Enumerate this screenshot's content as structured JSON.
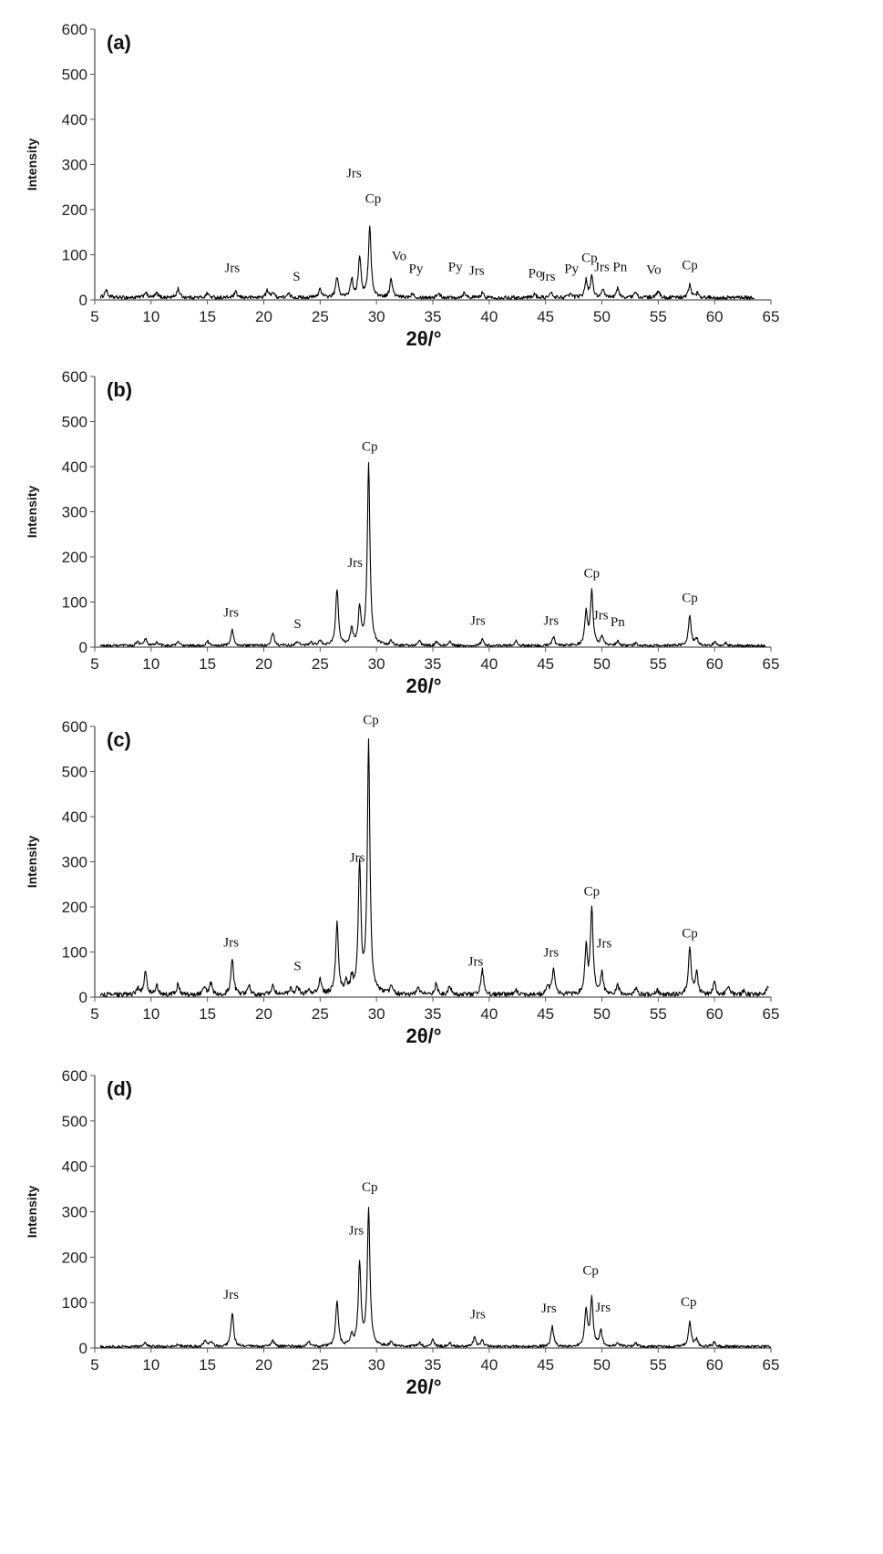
{
  "chart_data": [
    {
      "type": "line",
      "panel_label": "(a)",
      "xlabel": "2θ/°",
      "ylabel": "Intensity",
      "xlim": [
        5,
        65
      ],
      "ylim": [
        0,
        600
      ],
      "xticks": [
        5,
        10,
        15,
        20,
        25,
        30,
        35,
        40,
        45,
        50,
        55,
        60,
        65
      ],
      "yticks": [
        0,
        100,
        200,
        300,
        400,
        500,
        600
      ],
      "baseline": 5,
      "noise": 4,
      "x_end": 63.5,
      "peaks": [
        [
          6,
          18
        ],
        [
          9.5,
          12
        ],
        [
          10.5,
          10
        ],
        [
          12.4,
          20
        ],
        [
          15,
          10
        ],
        [
          17.5,
          12
        ],
        [
          20.3,
          15
        ],
        [
          20.8,
          12
        ],
        [
          22.2,
          8
        ],
        [
          25,
          20
        ],
        [
          26.5,
          45
        ],
        [
          27.8,
          40
        ],
        [
          28.5,
          90
        ],
        [
          29.4,
          155
        ],
        [
          31.3,
          40
        ],
        [
          33.2,
          10
        ],
        [
          35.5,
          10
        ],
        [
          37.8,
          12
        ],
        [
          39.4,
          10
        ],
        [
          44,
          8
        ],
        [
          45.5,
          10
        ],
        [
          47.2,
          8
        ],
        [
          48.6,
          38
        ],
        [
          49.1,
          45
        ],
        [
          50.1,
          15
        ],
        [
          51.4,
          20
        ],
        [
          53,
          12
        ],
        [
          55,
          15
        ],
        [
          57.8,
          28
        ],
        [
          58.5,
          10
        ]
      ],
      "annotations": [
        {
          "text": "Jrs",
          "x": 17.2,
          "y": 62
        },
        {
          "text": "Jrs",
          "x": 28,
          "y": 272
        },
        {
          "text": "Cp",
          "x": 29.7,
          "y": 215
        },
        {
          "text": "S",
          "x": 22.9,
          "y": 42
        },
        {
          "text": "Vo",
          "x": 32,
          "y": 88
        },
        {
          "text": "Py",
          "x": 33.5,
          "y": 60
        },
        {
          "text": "Py",
          "x": 37,
          "y": 64
        },
        {
          "text": "Jrs",
          "x": 38.9,
          "y": 56
        },
        {
          "text": "Po",
          "x": 44.1,
          "y": 50
        },
        {
          "text": "Jrs",
          "x": 45.2,
          "y": 42
        },
        {
          "text": "Py",
          "x": 47.3,
          "y": 60
        },
        {
          "text": "Cp",
          "x": 48.9,
          "y": 84
        },
        {
          "text": "Jrs",
          "x": 50,
          "y": 64
        },
        {
          "text": "Pn",
          "x": 51.6,
          "y": 64
        },
        {
          "text": "Vo",
          "x": 54.6,
          "y": 58
        },
        {
          "text": "Cp",
          "x": 57.8,
          "y": 68
        }
      ]
    },
    {
      "type": "line",
      "panel_label": "(b)",
      "xlabel": "2θ/°",
      "ylabel": "Intensity",
      "xlim": [
        5,
        65
      ],
      "ylim": [
        0,
        600
      ],
      "xticks": [
        5,
        10,
        15,
        20,
        25,
        30,
        35,
        40,
        45,
        50,
        55,
        60,
        65
      ],
      "yticks": [
        0,
        100,
        200,
        300,
        400,
        500,
        600
      ],
      "baseline": 3,
      "noise": 3,
      "x_end": 64.5,
      "peaks": [
        [
          8.8,
          10
        ],
        [
          9.5,
          15
        ],
        [
          10.5,
          8
        ],
        [
          12.4,
          8
        ],
        [
          15,
          10
        ],
        [
          17.2,
          35
        ],
        [
          20.8,
          30
        ],
        [
          23,
          10
        ],
        [
          24.2,
          8
        ],
        [
          25,
          12
        ],
        [
          26.5,
          125
        ],
        [
          27.8,
          35
        ],
        [
          28.5,
          80
        ],
        [
          29.3,
          400
        ],
        [
          31.3,
          10
        ],
        [
          33.8,
          10
        ],
        [
          35.3,
          8
        ],
        [
          36.5,
          8
        ],
        [
          39.4,
          15
        ],
        [
          42.4,
          10
        ],
        [
          45.7,
          20
        ],
        [
          48.6,
          75
        ],
        [
          49.1,
          120
        ],
        [
          50,
          20
        ],
        [
          51.4,
          10
        ],
        [
          53,
          6
        ],
        [
          57.8,
          65
        ],
        [
          58.4,
          15
        ],
        [
          60,
          8
        ],
        [
          61,
          6
        ]
      ],
      "annotations": [
        {
          "text": "Jrs",
          "x": 17.1,
          "y": 68
        },
        {
          "text": "S",
          "x": 23,
          "y": 42
        },
        {
          "text": "Jrs",
          "x": 28.1,
          "y": 178
        },
        {
          "text": "Cp",
          "x": 29.4,
          "y": 435
        },
        {
          "text": "Jrs",
          "x": 39,
          "y": 50
        },
        {
          "text": "Jrs",
          "x": 45.5,
          "y": 50
        },
        {
          "text": "Cp",
          "x": 49.1,
          "y": 155
        },
        {
          "text": "Jrs",
          "x": 49.9,
          "y": 62
        },
        {
          "text": "Pn",
          "x": 51.4,
          "y": 46
        },
        {
          "text": "Cp",
          "x": 57.8,
          "y": 100
        }
      ]
    },
    {
      "type": "line",
      "panel_label": "(c)",
      "xlabel": "2θ/°",
      "ylabel": "Intensity",
      "xlim": [
        5,
        65
      ],
      "ylim": [
        0,
        600
      ],
      "xticks": [
        5,
        10,
        15,
        20,
        25,
        30,
        35,
        40,
        45,
        50,
        55,
        60,
        65
      ],
      "yticks": [
        0,
        100,
        200,
        300,
        400,
        500,
        600
      ],
      "baseline": 5,
      "noise": 5,
      "x_end": 64.8,
      "peaks": [
        [
          8.8,
          15
        ],
        [
          9.5,
          55
        ],
        [
          10.5,
          20
        ],
        [
          12.4,
          25
        ],
        [
          14.7,
          20
        ],
        [
          15.3,
          25
        ],
        [
          17.2,
          80
        ],
        [
          18.7,
          20
        ],
        [
          20.8,
          25
        ],
        [
          22.4,
          15
        ],
        [
          23,
          18
        ],
        [
          24,
          15
        ],
        [
          25,
          35
        ],
        [
          26.5,
          160
        ],
        [
          27.3,
          25
        ],
        [
          27.8,
          30
        ],
        [
          28.5,
          285
        ],
        [
          29.3,
          555
        ],
        [
          31.3,
          20
        ],
        [
          33.7,
          15
        ],
        [
          35.3,
          25
        ],
        [
          36.5,
          20
        ],
        [
          39.4,
          55
        ],
        [
          42.4,
          10
        ],
        [
          45.2,
          20
        ],
        [
          45.7,
          55
        ],
        [
          48.6,
          100
        ],
        [
          49.1,
          190
        ],
        [
          50,
          45
        ],
        [
          51.4,
          20
        ],
        [
          53,
          15
        ],
        [
          54.9,
          10
        ],
        [
          57.8,
          100
        ],
        [
          58.4,
          50
        ],
        [
          60,
          30
        ],
        [
          61.2,
          20
        ],
        [
          62.6,
          10
        ],
        [
          64.7,
          18
        ]
      ],
      "annotations": [
        {
          "text": "Jrs",
          "x": 17.1,
          "y": 112
        },
        {
          "text": "S",
          "x": 23,
          "y": 60
        },
        {
          "text": "Jrs",
          "x": 28.3,
          "y": 300
        },
        {
          "text": "Cp",
          "x": 29.5,
          "y": 605
        },
        {
          "text": "Jrs",
          "x": 38.8,
          "y": 70
        },
        {
          "text": "Jrs",
          "x": 45.5,
          "y": 90
        },
        {
          "text": "Cp",
          "x": 49.1,
          "y": 225
        },
        {
          "text": "Jrs",
          "x": 50.2,
          "y": 110
        },
        {
          "text": "Cp",
          "x": 57.8,
          "y": 132
        }
      ]
    },
    {
      "type": "line",
      "panel_label": "(d)",
      "xlabel": "2θ/°",
      "ylabel": "Intensity",
      "xlim": [
        5,
        65
      ],
      "ylim": [
        0,
        600
      ],
      "xticks": [
        5,
        10,
        15,
        20,
        25,
        30,
        35,
        40,
        45,
        50,
        55,
        60,
        65
      ],
      "yticks": [
        0,
        100,
        200,
        300,
        400,
        500,
        600
      ],
      "baseline": 3,
      "noise": 3,
      "x_end": 65,
      "peaks": [
        [
          9.5,
          8
        ],
        [
          12.4,
          6
        ],
        [
          14.8,
          15
        ],
        [
          15.3,
          12
        ],
        [
          17.2,
          75
        ],
        [
          20.8,
          15
        ],
        [
          24,
          10
        ],
        [
          26.5,
          100
        ],
        [
          27.8,
          25
        ],
        [
          28.5,
          180
        ],
        [
          29.3,
          300
        ],
        [
          31.3,
          10
        ],
        [
          33.8,
          10
        ],
        [
          35,
          15
        ],
        [
          36.5,
          8
        ],
        [
          38.7,
          20
        ],
        [
          39.4,
          15
        ],
        [
          45.6,
          45
        ],
        [
          48.6,
          80
        ],
        [
          49.1,
          105
        ],
        [
          49.9,
          35
        ],
        [
          51.4,
          10
        ],
        [
          53,
          8
        ],
        [
          57.8,
          55
        ],
        [
          58.4,
          15
        ],
        [
          60,
          10
        ]
      ],
      "annotations": [
        {
          "text": "Jrs",
          "x": 17.1,
          "y": 108
        },
        {
          "text": "Jrs",
          "x": 28.2,
          "y": 250
        },
        {
          "text": "Cp",
          "x": 29.4,
          "y": 345
        },
        {
          "text": "Jrs",
          "x": 39,
          "y": 65
        },
        {
          "text": "Jrs",
          "x": 45.3,
          "y": 78
        },
        {
          "text": "Cp",
          "x": 49,
          "y": 162
        },
        {
          "text": "Jrs",
          "x": 50.1,
          "y": 80
        },
        {
          "text": "Cp",
          "x": 57.7,
          "y": 92
        }
      ]
    }
  ]
}
